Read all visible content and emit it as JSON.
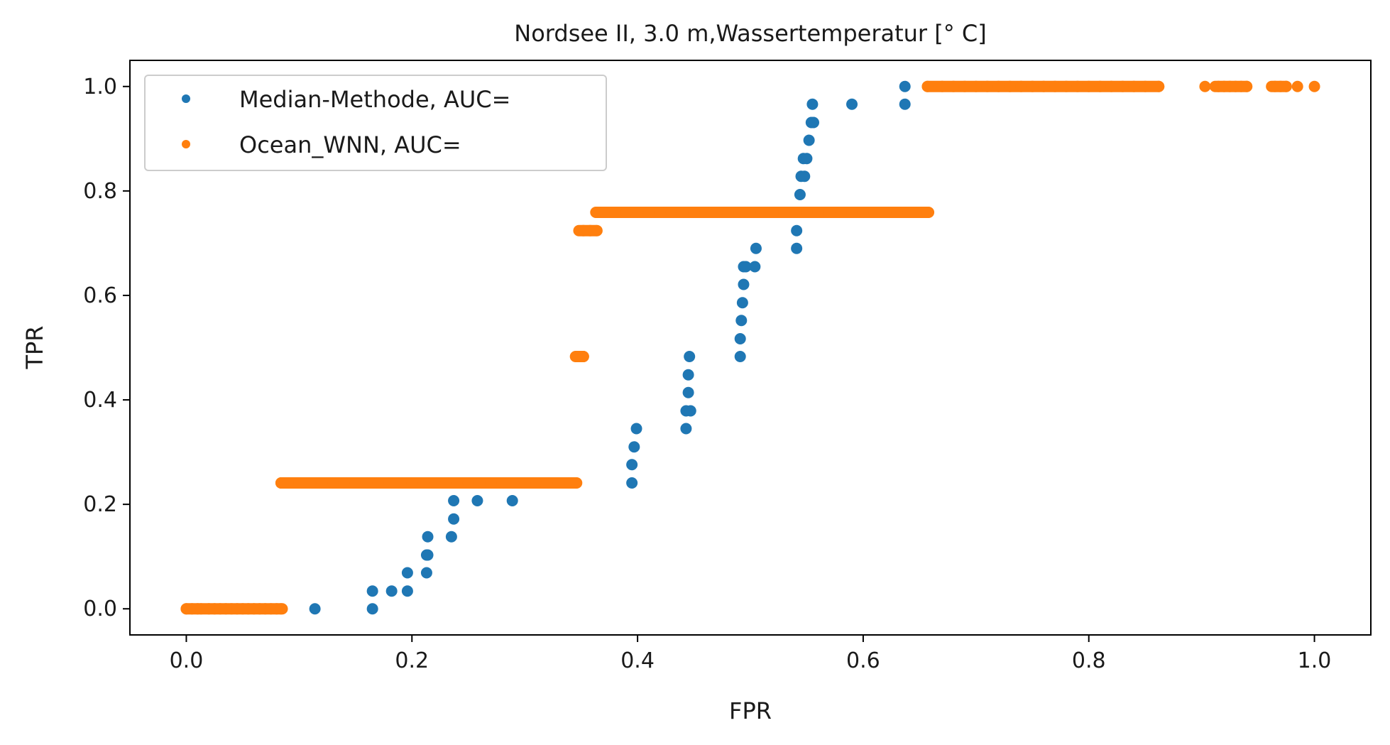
{
  "chart_data": {
    "type": "scatter",
    "title": "Nordsee II, 3.0 m,Wassertemperatur [° C]",
    "xlabel": "FPR",
    "ylabel": "TPR",
    "xlim": [
      -0.05,
      1.05
    ],
    "ylim": [
      -0.05,
      1.05
    ],
    "xticks": [
      0.0,
      0.2,
      0.4,
      0.6,
      0.8,
      1.0
    ],
    "xtick_labels": [
      "0.0",
      "0.2",
      "0.4",
      "0.6",
      "0.8",
      "1.0"
    ],
    "yticks": [
      0.0,
      0.2,
      0.4,
      0.6,
      0.8,
      1.0
    ],
    "ytick_labels": [
      "0.0",
      "0.2",
      "0.4",
      "0.6",
      "0.8",
      "1.0"
    ],
    "grid": false,
    "legend_position": "top-left",
    "series": [
      {
        "name": "Median-Methode, AUC=",
        "color": "#1f77b4",
        "x": [
          0.114,
          0.165,
          0.165,
          0.182,
          0.196,
          0.196,
          0.213,
          0.213,
          0.214,
          0.214,
          0.235,
          0.237,
          0.237,
          0.258,
          0.289,
          0.395,
          0.395,
          0.397,
          0.399,
          0.443,
          0.443,
          0.445,
          0.445,
          0.446,
          0.447,
          0.491,
          0.491,
          0.492,
          0.493,
          0.494,
          0.494,
          0.496,
          0.504,
          0.505,
          0.541,
          0.541,
          0.544,
          0.545,
          0.547,
          0.548,
          0.55,
          0.552,
          0.554,
          0.555,
          0.556,
          0.59,
          0.637,
          0.637
        ],
        "y": [
          0.0,
          0.0,
          0.034,
          0.034,
          0.034,
          0.069,
          0.069,
          0.103,
          0.103,
          0.138,
          0.138,
          0.172,
          0.207,
          0.207,
          0.207,
          0.241,
          0.276,
          0.31,
          0.345,
          0.345,
          0.379,
          0.414,
          0.448,
          0.483,
          0.379,
          0.483,
          0.517,
          0.552,
          0.586,
          0.621,
          0.655,
          0.655,
          0.655,
          0.69,
          0.69,
          0.724,
          0.793,
          0.828,
          0.862,
          0.828,
          0.862,
          0.897,
          0.931,
          0.966,
          0.931,
          0.966,
          0.966,
          1.0
        ],
        "x_segments": []
      },
      {
        "name": "Ocean_WNN, AUC=",
        "color": "#ff7f0e",
        "x": [
          0.0,
          0.005,
          0.01,
          0.013,
          0.02,
          0.025,
          0.03,
          0.035,
          0.04,
          0.045,
          0.05,
          0.055,
          0.06,
          0.065,
          0.07,
          0.075,
          0.08,
          0.084,
          0.084,
          0.09,
          0.1,
          0.11,
          0.12,
          0.13,
          0.14,
          0.15,
          0.16,
          0.17,
          0.18,
          0.19,
          0.2,
          0.21,
          0.22,
          0.23,
          0.24,
          0.25,
          0.26,
          0.27,
          0.28,
          0.29,
          0.3,
          0.31,
          0.32,
          0.33,
          0.34,
          0.346,
          0.346,
          0.352,
          0.352,
          0.358,
          0.364,
          0.364,
          0.37,
          0.38,
          0.39,
          0.4,
          0.41,
          0.42,
          0.43,
          0.44,
          0.45,
          0.46,
          0.47,
          0.48,
          0.49,
          0.5,
          0.51,
          0.52,
          0.53,
          0.54,
          0.55,
          0.56,
          0.57,
          0.58,
          0.59,
          0.6,
          0.61,
          0.62,
          0.63,
          0.64,
          0.65,
          0.657,
          0.657,
          0.67,
          0.68,
          0.69,
          0.7,
          0.71,
          0.72,
          0.73,
          0.74,
          0.75,
          0.76,
          0.77,
          0.78,
          0.79,
          0.8,
          0.81,
          0.82,
          0.83,
          0.84,
          0.85,
          0.862,
          0.903,
          0.915,
          0.92,
          0.925,
          0.93,
          0.935,
          0.94,
          0.965,
          0.97,
          0.975,
          0.985,
          1.0
        ],
        "y": [
          0.0,
          0.0,
          0.0,
          0.0,
          0.0,
          0.0,
          0.0,
          0.0,
          0.0,
          0.0,
          0.0,
          0.0,
          0.0,
          0.0,
          0.0,
          0.0,
          0.0,
          0.0,
          0.241,
          0.241,
          0.241,
          0.241,
          0.241,
          0.241,
          0.241,
          0.241,
          0.241,
          0.241,
          0.241,
          0.241,
          0.241,
          0.241,
          0.241,
          0.241,
          0.241,
          0.241,
          0.241,
          0.241,
          0.241,
          0.241,
          0.241,
          0.241,
          0.241,
          0.241,
          0.241,
          0.241,
          0.483,
          0.483,
          0.724,
          0.724,
          0.724,
          0.759,
          0.759,
          0.759,
          0.759,
          0.759,
          0.759,
          0.759,
          0.759,
          0.759,
          0.759,
          0.759,
          0.759,
          0.759,
          0.759,
          0.759,
          0.759,
          0.759,
          0.759,
          0.759,
          0.759,
          0.759,
          0.759,
          0.759,
          0.759,
          0.759,
          0.759,
          0.759,
          0.759,
          0.759,
          0.759,
          0.759,
          1.0,
          1.0,
          1.0,
          1.0,
          1.0,
          1.0,
          1.0,
          1.0,
          1.0,
          1.0,
          1.0,
          1.0,
          1.0,
          1.0,
          1.0,
          1.0,
          1.0,
          1.0,
          1.0,
          1.0,
          1.0,
          1.0,
          1.0,
          1.0,
          1.0,
          1.0,
          1.0,
          1.0,
          1.0,
          1.0,
          1.0,
          1.0,
          1.0
        ],
        "x_segments": [
          {
            "from": 0.0,
            "to": 0.085,
            "y": 0.0
          },
          {
            "from": 0.084,
            "to": 0.345,
            "y": 0.241
          },
          {
            "from": 0.345,
            "to": 0.352,
            "y": 0.483
          },
          {
            "from": 0.348,
            "to": 0.363,
            "y": 0.724
          },
          {
            "from": 0.363,
            "to": 0.658,
            "y": 0.759
          },
          {
            "from": 0.657,
            "to": 0.862,
            "y": 1.0
          },
          {
            "from": 0.912,
            "to": 0.94,
            "y": 1.0
          },
          {
            "from": 0.962,
            "to": 0.975,
            "y": 1.0
          }
        ]
      }
    ]
  }
}
